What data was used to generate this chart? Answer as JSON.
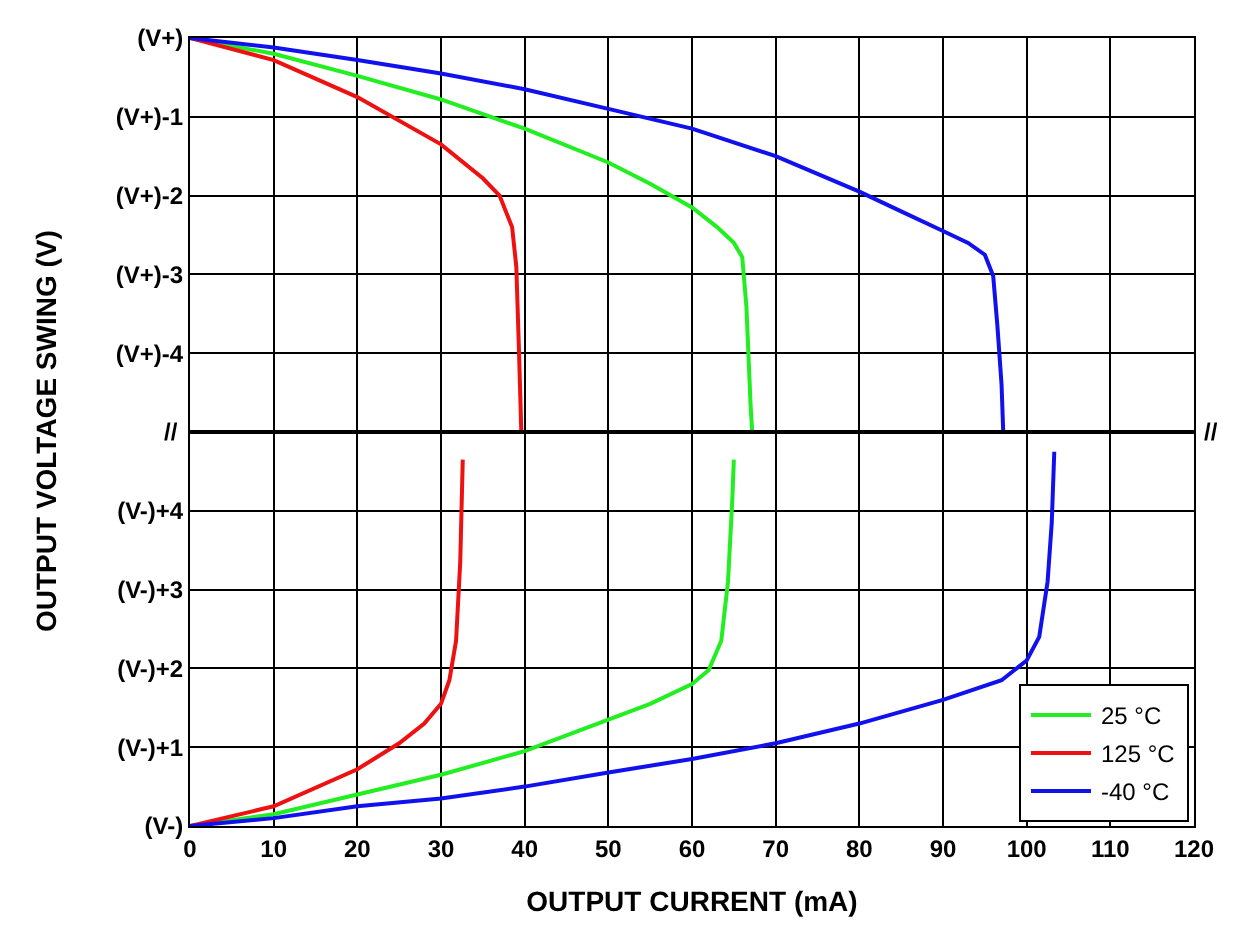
{
  "chart_data": [
    {
      "type": "line",
      "xlim": [
        0,
        120
      ],
      "xticks": [
        0,
        10,
        20,
        30,
        40,
        50,
        60,
        70,
        80,
        90,
        100,
        110,
        120
      ],
      "ylim": [
        -5,
        0
      ],
      "yticks": [
        {
          "value": -4,
          "label": "(V+)-4"
        },
        {
          "value": -3,
          "label": "(V+)-3"
        },
        {
          "value": -2,
          "label": "(V+)-2"
        },
        {
          "value": -1,
          "label": "(V+)-1"
        },
        {
          "value": 0,
          "label": "(V+)"
        }
      ],
      "tick_labels": "y",
      "grid": true,
      "line_style": "solid",
      "marker": "none",
      "series": [
        {
          "color": "#22ee22",
          "x": [
            0,
            10,
            20,
            30,
            40,
            50,
            55,
            60,
            63,
            65,
            66,
            66.5,
            67,
            67.2
          ],
          "values": [
            0,
            -0.2,
            -0.48,
            -0.78,
            -1.15,
            -1.58,
            -1.85,
            -2.15,
            -2.4,
            -2.6,
            -2.78,
            -3.4,
            -4.65,
            -5.0
          ]
        },
        {
          "color": "#ee1111",
          "x": [
            0,
            10,
            20,
            30,
            35,
            37,
            38.5,
            39,
            39.3,
            39.6
          ],
          "values": [
            0,
            -0.28,
            -0.75,
            -1.35,
            -1.78,
            -2.0,
            -2.4,
            -2.9,
            -3.9,
            -5.0
          ]
        },
        {
          "color": "#1111ee",
          "x": [
            0,
            10,
            20,
            30,
            40,
            50,
            60,
            70,
            80,
            85,
            90,
            93,
            95,
            96,
            96.5,
            97,
            97.2
          ],
          "values": [
            0,
            -0.12,
            -0.28,
            -0.45,
            -0.65,
            -0.9,
            -1.15,
            -1.5,
            -1.95,
            -2.2,
            -2.45,
            -2.6,
            -2.75,
            -3.02,
            -3.65,
            -4.4,
            -5.0
          ]
        }
      ]
    },
    {
      "type": "line",
      "xlabel": "OUTPUT CURRENT (mA)",
      "ylabel": "OUTPUT VOLTAGE SWING (V)",
      "xlim": [
        0,
        120
      ],
      "xticks": [
        0,
        10,
        20,
        30,
        40,
        50,
        60,
        70,
        80,
        90,
        100,
        110,
        120
      ],
      "ylim": [
        0,
        5
      ],
      "yticks": [
        {
          "value": 0,
          "label": "(V-)"
        },
        {
          "value": 1,
          "label": "(V-)+1"
        },
        {
          "value": 2,
          "label": "(V-)+2"
        },
        {
          "value": 3,
          "label": "(V-)+3"
        },
        {
          "value": 4,
          "label": "(V-)+4"
        }
      ],
      "annotations": [
        "//",
        "//"
      ],
      "grid": true,
      "legend": "bottom right",
      "line_style": "solid",
      "marker": "none",
      "series": [
        {
          "name": "25 °C",
          "color": "#22ee22",
          "x": [
            0,
            10,
            20,
            30,
            40,
            50,
            55,
            60,
            62,
            63.5,
            64.3,
            64.8,
            65
          ],
          "values": [
            0,
            0.15,
            0.4,
            0.65,
            0.95,
            1.35,
            1.55,
            1.8,
            1.98,
            2.35,
            3.1,
            4.1,
            4.65
          ]
        },
        {
          "name": "125 °C",
          "color": "#ee1111",
          "x": [
            0,
            10,
            20,
            25,
            28,
            30,
            31,
            31.8,
            32.3,
            32.6
          ],
          "values": [
            0,
            0.25,
            0.72,
            1.05,
            1.3,
            1.55,
            1.85,
            2.35,
            3.35,
            4.65
          ]
        },
        {
          "name": "-40 °C",
          "color": "#1111ee",
          "x": [
            0,
            10,
            20,
            30,
            40,
            50,
            60,
            70,
            80,
            90,
            97,
            100,
            101.5,
            102.5,
            103,
            103.3
          ],
          "values": [
            0,
            0.1,
            0.25,
            0.35,
            0.5,
            0.68,
            0.85,
            1.05,
            1.3,
            1.6,
            1.85,
            2.1,
            2.4,
            3.1,
            3.85,
            4.75
          ]
        }
      ]
    }
  ]
}
